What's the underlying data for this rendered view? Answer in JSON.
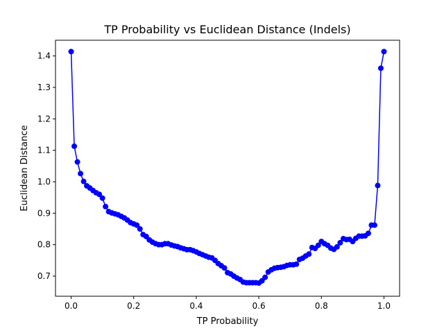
{
  "chart_data": {
    "type": "line",
    "title": "TP Probability vs Euclidean Distance (Indels)",
    "xlabel": "TP Probability",
    "ylabel": "Euclidean Distance",
    "xlim": [
      -0.05,
      1.05
    ],
    "ylim": [
      0.636,
      1.45
    ],
    "xticks": [
      "0.0",
      "0.2",
      "0.4",
      "0.6",
      "0.8",
      "1.0"
    ],
    "yticks": [
      "0.7",
      "0.8",
      "0.9",
      "1.0",
      "1.1",
      "1.2",
      "1.3",
      "1.4"
    ],
    "grid": false,
    "legend": "none",
    "series": [
      {
        "color": "#0000ff",
        "marker": "circle",
        "x": [
          0.0,
          0.01,
          0.02,
          0.03,
          0.04,
          0.05,
          0.06,
          0.07,
          0.08,
          0.09,
          0.1,
          0.11,
          0.12,
          0.13,
          0.14,
          0.15,
          0.16,
          0.17,
          0.18,
          0.19,
          0.2,
          0.21,
          0.22,
          0.23,
          0.24,
          0.25,
          0.26,
          0.27,
          0.28,
          0.29,
          0.3,
          0.31,
          0.32,
          0.33,
          0.34,
          0.35,
          0.36,
          0.37,
          0.38,
          0.39,
          0.4,
          0.41,
          0.42,
          0.43,
          0.44,
          0.45,
          0.46,
          0.47,
          0.48,
          0.49,
          0.5,
          0.51,
          0.52,
          0.53,
          0.54,
          0.55,
          0.56,
          0.57,
          0.58,
          0.59,
          0.6,
          0.61,
          0.62,
          0.63,
          0.64,
          0.65,
          0.66,
          0.67,
          0.68,
          0.69,
          0.7,
          0.71,
          0.72,
          0.73,
          0.74,
          0.75,
          0.76,
          0.77,
          0.78,
          0.79,
          0.8,
          0.81,
          0.82,
          0.83,
          0.84,
          0.85,
          0.86,
          0.87,
          0.88,
          0.89,
          0.9,
          0.91,
          0.92,
          0.93,
          0.94,
          0.95,
          0.96,
          0.97,
          0.98,
          0.99,
          1.0
        ],
        "y": [
          1.414,
          1.113,
          1.063,
          1.026,
          1.001,
          0.987,
          0.98,
          0.972,
          0.965,
          0.96,
          0.948,
          0.921,
          0.905,
          0.901,
          0.898,
          0.895,
          0.89,
          0.885,
          0.878,
          0.87,
          0.866,
          0.862,
          0.85,
          0.832,
          0.826,
          0.815,
          0.808,
          0.803,
          0.8,
          0.8,
          0.803,
          0.803,
          0.799,
          0.796,
          0.794,
          0.79,
          0.787,
          0.784,
          0.784,
          0.781,
          0.777,
          0.772,
          0.768,
          0.764,
          0.76,
          0.758,
          0.75,
          0.74,
          0.733,
          0.726,
          0.711,
          0.707,
          0.7,
          0.694,
          0.689,
          0.681,
          0.679,
          0.679,
          0.679,
          0.679,
          0.678,
          0.685,
          0.696,
          0.713,
          0.72,
          0.725,
          0.727,
          0.728,
          0.73,
          0.734,
          0.736,
          0.736,
          0.738,
          0.753,
          0.757,
          0.764,
          0.77,
          0.791,
          0.788,
          0.798,
          0.81,
          0.803,
          0.798,
          0.789,
          0.785,
          0.793,
          0.806,
          0.819,
          0.816,
          0.817,
          0.81,
          0.82,
          0.827,
          0.827,
          0.828,
          0.836,
          0.862,
          0.862,
          0.988,
          1.361,
          1.414
        ]
      }
    ]
  }
}
